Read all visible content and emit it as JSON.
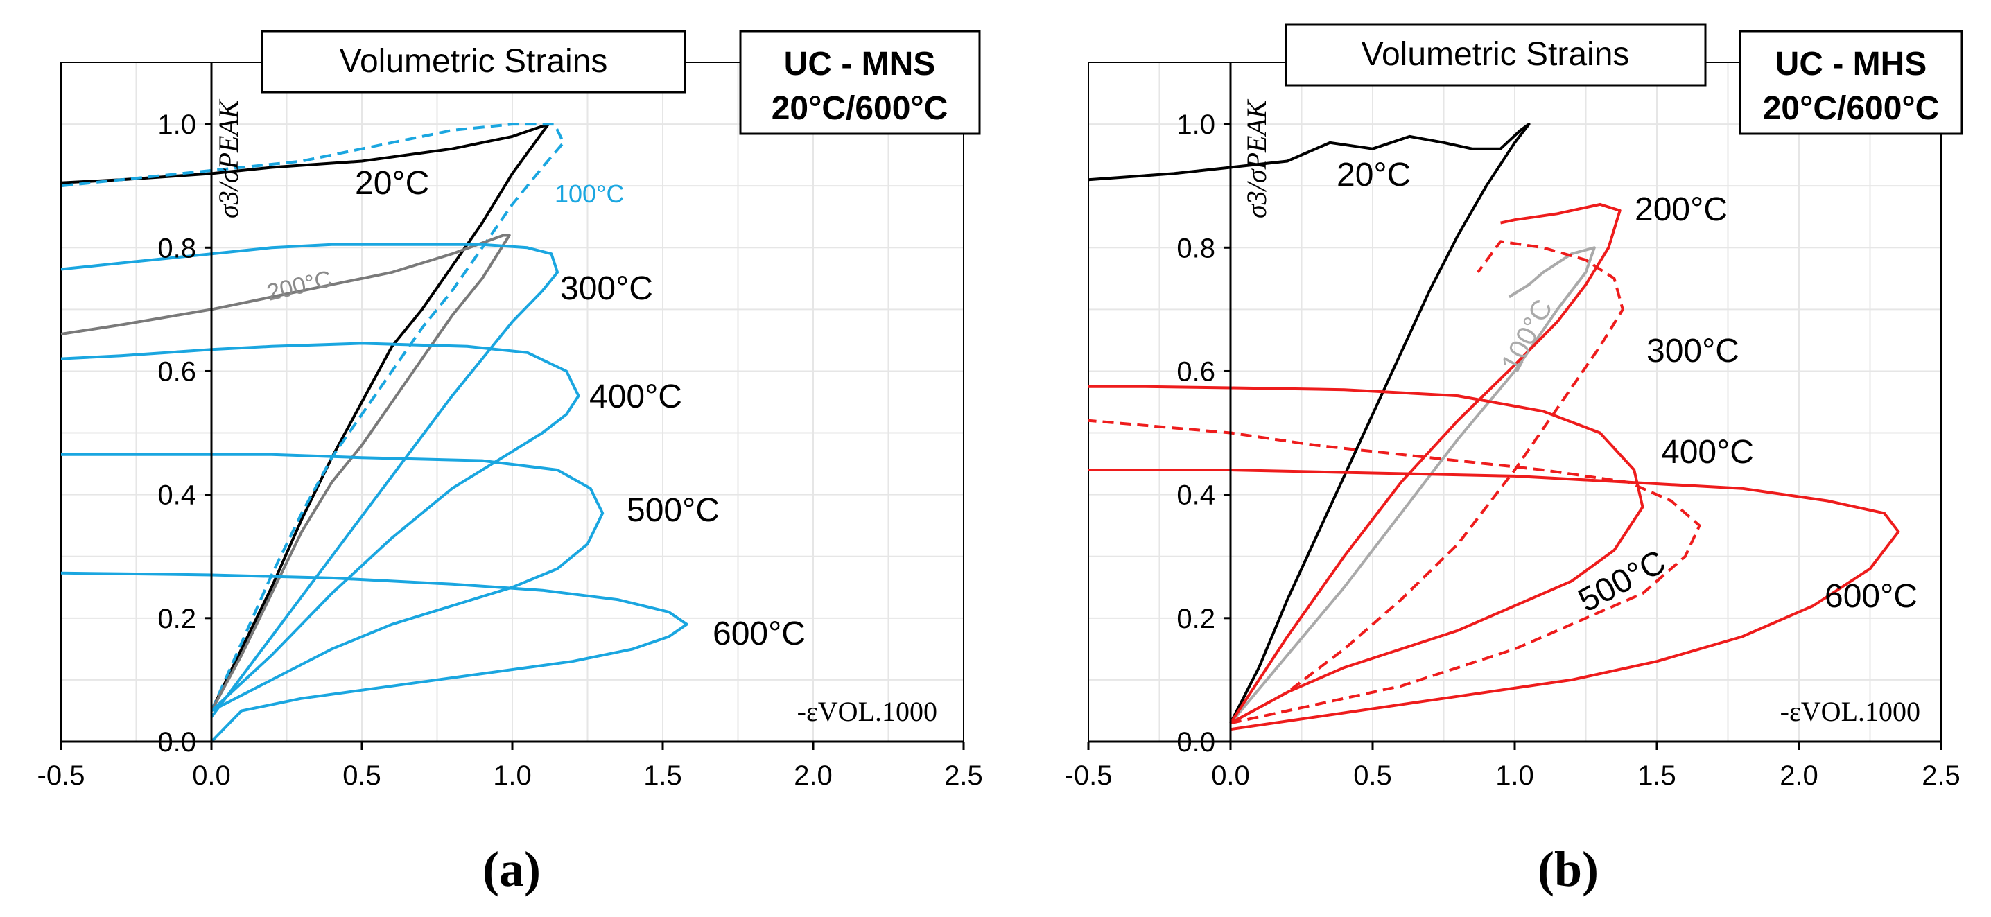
{
  "chart_data": [
    {
      "type": "line",
      "panel_label": "(a)",
      "title": "Volumetric Strains",
      "title_box_text": [
        "UC - MNS",
        "20°C/600°C"
      ],
      "xlabel": "-εVOL.1000",
      "ylabel": "σ3/σPEAK",
      "xlim": [
        -0.5,
        2.5
      ],
      "ylim": [
        0.0,
        1.1
      ],
      "x_ticks": [
        "-0.5",
        "0.0",
        "0.5",
        "1.0",
        "1.5",
        "2.0",
        "2.5"
      ],
      "y_ticks": [
        "0.0",
        "0.2",
        "0.4",
        "0.6",
        "0.8",
        "1.0"
      ],
      "series": [
        {
          "name": "20°C",
          "label": "20°C",
          "color": "#000000",
          "style": "solid",
          "x": [
            0.0,
            0.1,
            0.2,
            0.3,
            0.4,
            0.5,
            0.6,
            0.7,
            0.8,
            0.9,
            1.0,
            1.12,
            1.0,
            0.8,
            0.5,
            0.2,
            0.0,
            -0.3,
            -0.5
          ],
          "y": [
            0.05,
            0.15,
            0.25,
            0.36,
            0.46,
            0.55,
            0.64,
            0.7,
            0.77,
            0.84,
            0.92,
            1.0,
            0.98,
            0.96,
            0.94,
            0.93,
            0.92,
            0.91,
            0.905
          ]
        },
        {
          "name": "100°C",
          "label": "100°C",
          "color": "#1aa6e0",
          "style": "dashed",
          "x": [
            0.0,
            0.1,
            0.2,
            0.3,
            0.4,
            0.5,
            0.6,
            0.7,
            0.8,
            0.9,
            1.0,
            1.1,
            1.17,
            1.14,
            1.0,
            0.8,
            0.5,
            0.3,
            0.1,
            -0.2,
            -0.5
          ],
          "y": [
            0.05,
            0.16,
            0.27,
            0.37,
            0.46,
            0.53,
            0.6,
            0.67,
            0.73,
            0.8,
            0.87,
            0.93,
            0.97,
            1.0,
            1.0,
            0.99,
            0.96,
            0.94,
            0.93,
            0.915,
            0.9
          ]
        },
        {
          "name": "200°C",
          "label": "200°C",
          "color": "#7a7a7a",
          "style": "solid",
          "x": [
            0.0,
            0.1,
            0.2,
            0.3,
            0.4,
            0.5,
            0.6,
            0.7,
            0.8,
            0.9,
            0.99,
            0.97,
            0.8,
            0.6,
            0.4,
            0.2,
            0.0,
            -0.3,
            -0.5
          ],
          "y": [
            0.05,
            0.14,
            0.24,
            0.34,
            0.42,
            0.48,
            0.55,
            0.62,
            0.69,
            0.75,
            0.82,
            0.82,
            0.79,
            0.76,
            0.74,
            0.72,
            0.7,
            0.675,
            0.66
          ]
        },
        {
          "name": "300°C",
          "label": "300°C",
          "color": "#1aa6e0",
          "style": "solid",
          "x": [
            0.0,
            0.2,
            0.4,
            0.6,
            0.8,
            1.0,
            1.1,
            1.15,
            1.13,
            1.05,
            0.9,
            0.7,
            0.4,
            0.2,
            0.0,
            -0.3,
            -0.5
          ],
          "y": [
            0.04,
            0.17,
            0.3,
            0.43,
            0.56,
            0.68,
            0.73,
            0.76,
            0.79,
            0.8,
            0.805,
            0.805,
            0.805,
            0.8,
            0.79,
            0.775,
            0.765
          ]
        },
        {
          "name": "400°C",
          "label": "400°C",
          "color": "#1aa6e0",
          "style": "solid",
          "x": [
            0.0,
            0.2,
            0.4,
            0.6,
            0.8,
            1.0,
            1.1,
            1.18,
            1.22,
            1.18,
            1.05,
            0.85,
            0.5,
            0.2,
            0.0,
            -0.3,
            -0.5
          ],
          "y": [
            0.05,
            0.14,
            0.24,
            0.33,
            0.41,
            0.47,
            0.5,
            0.53,
            0.56,
            0.6,
            0.63,
            0.64,
            0.645,
            0.64,
            0.635,
            0.625,
            0.62
          ]
        },
        {
          "name": "500°C",
          "label": "500°C",
          "color": "#1aa6e0",
          "style": "solid",
          "x": [
            0.0,
            0.2,
            0.4,
            0.6,
            0.8,
            1.0,
            1.15,
            1.25,
            1.3,
            1.26,
            1.15,
            0.9,
            0.5,
            0.2,
            0.0,
            -0.3,
            -0.5
          ],
          "y": [
            0.05,
            0.1,
            0.15,
            0.19,
            0.22,
            0.25,
            0.28,
            0.32,
            0.37,
            0.41,
            0.44,
            0.455,
            0.46,
            0.465,
            0.465,
            0.465,
            0.465
          ]
        },
        {
          "name": "600°C",
          "label": "600°C",
          "color": "#1aa6e0",
          "style": "solid",
          "x": [
            0.0,
            0.1,
            0.3,
            0.6,
            0.9,
            1.2,
            1.4,
            1.52,
            1.58,
            1.52,
            1.35,
            1.1,
            0.8,
            0.4,
            0.0,
            -0.3,
            -0.5
          ],
          "y": [
            0.0,
            0.05,
            0.07,
            0.09,
            0.11,
            0.13,
            0.15,
            0.17,
            0.19,
            0.21,
            0.23,
            0.245,
            0.255,
            0.265,
            0.27,
            0.272,
            0.273
          ]
        }
      ]
    },
    {
      "type": "line",
      "panel_label": "(b)",
      "title": "Volumetric Strains",
      "title_box_text": [
        "UC - MHS",
        "20°C/600°C"
      ],
      "xlabel": "-εVOL.1000",
      "ylabel": "σ3/σPEAK",
      "xlim": [
        -0.5,
        2.5
      ],
      "ylim": [
        0.0,
        1.1
      ],
      "x_ticks": [
        "-0.5",
        "0.0",
        "0.5",
        "1.0",
        "1.5",
        "2.0",
        "2.5"
      ],
      "y_ticks": [
        "0.0",
        "0.2",
        "0.4",
        "0.6",
        "0.8",
        "1.0"
      ],
      "series": [
        {
          "name": "20°C",
          "label": "20°C",
          "color": "#000000",
          "style": "solid",
          "x": [
            0.0,
            0.1,
            0.2,
            0.3,
            0.4,
            0.5,
            0.6,
            0.7,
            0.8,
            0.9,
            1.0,
            1.05,
            1.02,
            0.95,
            0.85,
            0.75,
            0.63,
            0.5,
            0.35,
            0.2,
            0.0,
            -0.2,
            -0.5
          ],
          "y": [
            0.03,
            0.12,
            0.23,
            0.33,
            0.43,
            0.53,
            0.63,
            0.73,
            0.82,
            0.9,
            0.97,
            1.0,
            0.99,
            0.96,
            0.96,
            0.97,
            0.98,
            0.96,
            0.97,
            0.94,
            0.93,
            0.92,
            0.91
          ]
        },
        {
          "name": "100°C",
          "label": "100°C",
          "color": "#aaaaaa",
          "style": "solid",
          "x": [
            0.0,
            0.2,
            0.4,
            0.6,
            0.8,
            1.0,
            1.15,
            1.25,
            1.28,
            1.2,
            1.1,
            1.05,
            0.98
          ],
          "y": [
            0.03,
            0.14,
            0.25,
            0.37,
            0.49,
            0.6,
            0.7,
            0.76,
            0.8,
            0.79,
            0.76,
            0.74,
            0.72
          ]
        },
        {
          "name": "200°C",
          "label": "200°C",
          "color": "#ee1c1c",
          "style": "solid",
          "x": [
            0.0,
            0.2,
            0.4,
            0.6,
            0.8,
            1.0,
            1.15,
            1.25,
            1.33,
            1.37,
            1.3,
            1.15,
            1.0,
            0.95
          ],
          "y": [
            0.03,
            0.17,
            0.3,
            0.42,
            0.52,
            0.61,
            0.68,
            0.74,
            0.8,
            0.86,
            0.87,
            0.855,
            0.845,
            0.84
          ]
        },
        {
          "name": "300°C",
          "label": "300°C",
          "color": "#ee1c1c",
          "style": "dashed",
          "x": [
            0.0,
            0.2,
            0.4,
            0.6,
            0.8,
            1.0,
            1.15,
            1.3,
            1.38,
            1.35,
            1.25,
            1.1,
            0.95,
            0.87
          ],
          "y": [
            0.03,
            0.08,
            0.15,
            0.23,
            0.32,
            0.44,
            0.54,
            0.64,
            0.7,
            0.75,
            0.78,
            0.8,
            0.81,
            0.76
          ]
        },
        {
          "name": "400°C",
          "label": "400°C",
          "color": "#ee1c1c",
          "style": "solid",
          "x": [
            0.0,
            0.2,
            0.4,
            0.6,
            0.8,
            1.0,
            1.2,
            1.35,
            1.45,
            1.42,
            1.3,
            1.1,
            0.8,
            0.4,
            0.0,
            -0.3,
            -0.5
          ],
          "y": [
            0.03,
            0.08,
            0.12,
            0.15,
            0.18,
            0.22,
            0.26,
            0.31,
            0.38,
            0.44,
            0.5,
            0.535,
            0.56,
            0.57,
            0.573,
            0.575,
            0.575
          ]
        },
        {
          "name": "500°C",
          "label": "500°C",
          "color": "#ee1c1c",
          "style": "dashed",
          "x": [
            0.0,
            0.2,
            0.4,
            0.6,
            0.8,
            1.0,
            1.2,
            1.45,
            1.6,
            1.65,
            1.55,
            1.4,
            1.1,
            0.7,
            0.3,
            0.0,
            -0.5
          ],
          "y": [
            0.03,
            0.05,
            0.07,
            0.09,
            0.12,
            0.15,
            0.19,
            0.24,
            0.3,
            0.35,
            0.39,
            0.42,
            0.44,
            0.46,
            0.48,
            0.5,
            0.52
          ]
        },
        {
          "name": "600°C",
          "label": "600°C",
          "color": "#ee1c1c",
          "style": "solid",
          "x": [
            0.0,
            0.3,
            0.6,
            0.9,
            1.2,
            1.5,
            1.8,
            2.05,
            2.25,
            2.35,
            2.3,
            2.1,
            1.8,
            1.4,
            1.0,
            0.5,
            0.0,
            -0.5
          ],
          "y": [
            0.02,
            0.04,
            0.06,
            0.08,
            0.1,
            0.13,
            0.17,
            0.22,
            0.28,
            0.34,
            0.37,
            0.39,
            0.41,
            0.42,
            0.43,
            0.435,
            0.44,
            0.44
          ]
        }
      ]
    }
  ]
}
